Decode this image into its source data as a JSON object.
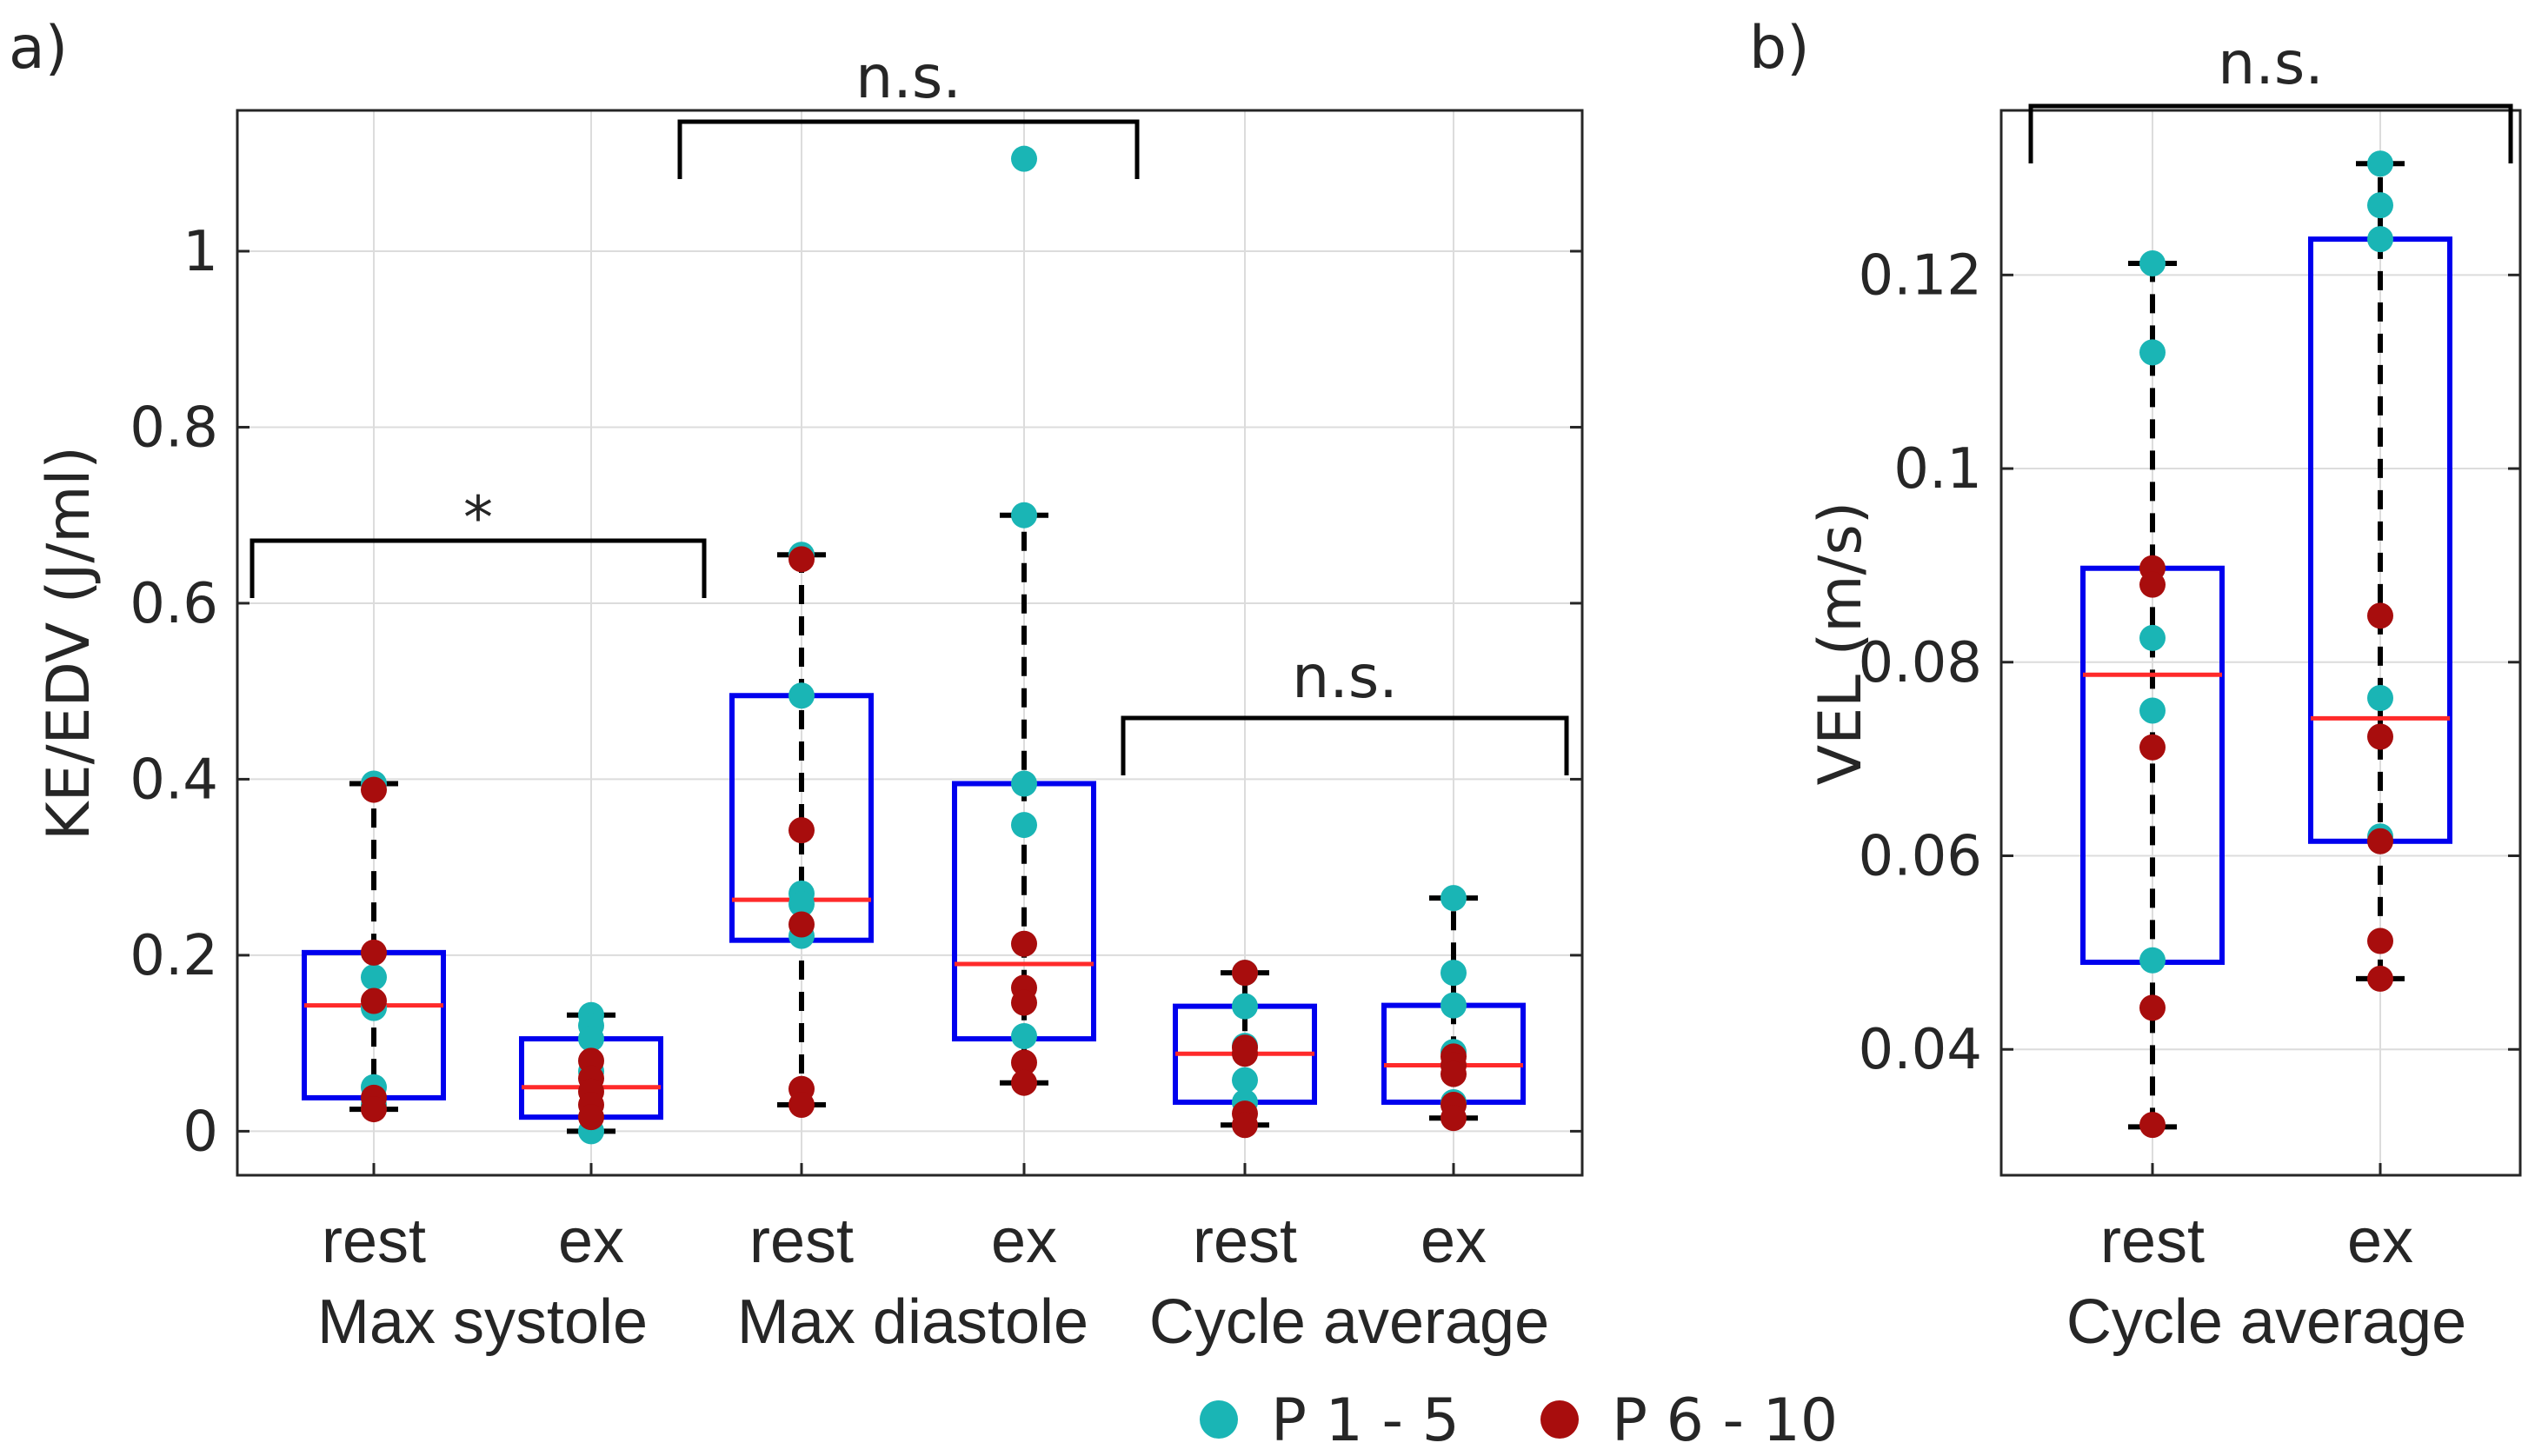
{
  "chart_data": [
    {
      "panel_label": "a)",
      "type": "box",
      "ylabel": "KE/EDV (J/ml)",
      "ylim": [
        -0.05,
        1.16
      ],
      "yticks": [
        0,
        0.2,
        0.4,
        0.6,
        0.8,
        1
      ],
      "ytick_labels": [
        "0",
        "0.2",
        "0.4",
        "0.6",
        "0.8",
        "1"
      ],
      "grid": true,
      "groups": [
        {
          "name": "Max systole",
          "boxes": [
            {
              "label": "rest",
              "whisker_low": 0.025,
              "q1": 0.038,
              "median": 0.143,
              "q3": 0.203,
              "whisker_high": 0.395,
              "points_p1_5": [
                0.395,
                0.175,
                0.14,
                0.05,
                0.03
              ],
              "points_p6_10": [
                0.388,
                0.203,
                0.148,
                0.038,
                0.025
              ]
            },
            {
              "label": "ex",
              "whisker_low": 0.0,
              "q1": 0.016,
              "median": 0.05,
              "q3": 0.105,
              "whisker_high": 0.132,
              "points_p1_5": [
                0.132,
                0.12,
                0.105,
                0.068,
                0.0
              ],
              "points_p6_10": [
                0.08,
                0.06,
                0.045,
                0.03,
                0.016
              ]
            }
          ],
          "significance": "*"
        },
        {
          "name": "Max diastole",
          "boxes": [
            {
              "label": "rest",
              "whisker_low": 0.03,
              "q1": 0.217,
              "median": 0.263,
              "q3": 0.495,
              "whisker_high": 0.655,
              "points_p1_5": [
                0.655,
                0.495,
                0.27,
                0.258,
                0.222
              ],
              "points_p6_10": [
                0.65,
                0.342,
                0.235,
                0.048,
                0.03
              ]
            },
            {
              "label": "ex",
              "whisker_low": 0.055,
              "q1": 0.105,
              "median": 0.19,
              "q3": 0.395,
              "whisker_high": 0.7,
              "points_p1_5": [
                1.105,
                0.7,
                0.395,
                0.348,
                0.108
              ],
              "points_p6_10": [
                0.213,
                0.163,
                0.146,
                0.078,
                0.055
              ]
            }
          ],
          "significance": "n.s."
        },
        {
          "name": "Cycle average",
          "boxes": [
            {
              "label": "rest",
              "whisker_low": 0.007,
              "q1": 0.033,
              "median": 0.088,
              "q3": 0.142,
              "whisker_high": 0.18,
              "points_p1_5": [
                0.18,
                0.142,
                0.097,
                0.058,
                0.033
              ],
              "points_p6_10": [
                0.18,
                0.095,
                0.088,
                0.02,
                0.007
              ]
            },
            {
              "label": "ex",
              "whisker_low": 0.015,
              "q1": 0.033,
              "median": 0.075,
              "q3": 0.143,
              "whisker_high": 0.265,
              "points_p1_5": [
                0.265,
                0.18,
                0.143,
                0.09,
                0.033
              ],
              "points_p6_10": [
                0.085,
                0.075,
                0.065,
                0.03,
                0.015
              ]
            }
          ],
          "significance": "n.s."
        }
      ]
    },
    {
      "panel_label": "b)",
      "type": "box",
      "ylabel": "VEL (m/s)",
      "ylim": [
        0.027,
        0.137
      ],
      "yticks": [
        0.04,
        0.06,
        0.08,
        0.1,
        0.12
      ],
      "ytick_labels": [
        "0.04",
        "0.06",
        "0.08",
        "0.1",
        "0.12"
      ],
      "grid": true,
      "groups": [
        {
          "name": "Cycle average",
          "boxes": [
            {
              "label": "rest",
              "whisker_low": 0.032,
              "q1": 0.049,
              "median": 0.0787,
              "q3": 0.0897,
              "whisker_high": 0.1212,
              "points_p1_5": [
                0.1212,
                0.112,
                0.0825,
                0.075,
                0.0492
              ],
              "points_p6_10": [
                0.0897,
                0.088,
                0.0712,
                0.0443,
                0.0322
              ]
            },
            {
              "label": "ex",
              "whisker_low": 0.0473,
              "q1": 0.0615,
              "median": 0.0742,
              "q3": 0.1237,
              "whisker_high": 0.1315,
              "points_p1_5": [
                0.1315,
                0.1272,
                0.1237,
                0.0763,
                0.062
              ],
              "points_p6_10": [
                0.0848,
                0.0723,
                0.0615,
                0.0512,
                0.0473
              ]
            }
          ],
          "significance": "n.s."
        }
      ]
    }
  ],
  "legend": {
    "entries": [
      {
        "label": "P 1 - 5",
        "color": "#1ab5b5"
      },
      {
        "label": "P 6 - 10",
        "color": "#a80d0d"
      }
    ]
  },
  "colors": {
    "box": "#0000ee",
    "median": "#ff2a2a",
    "whisker": "#000000",
    "grid": "#dcdcdc",
    "axis": "#262626",
    "p1_5": "#1ab5b5",
    "p6_10": "#a80d0d"
  }
}
